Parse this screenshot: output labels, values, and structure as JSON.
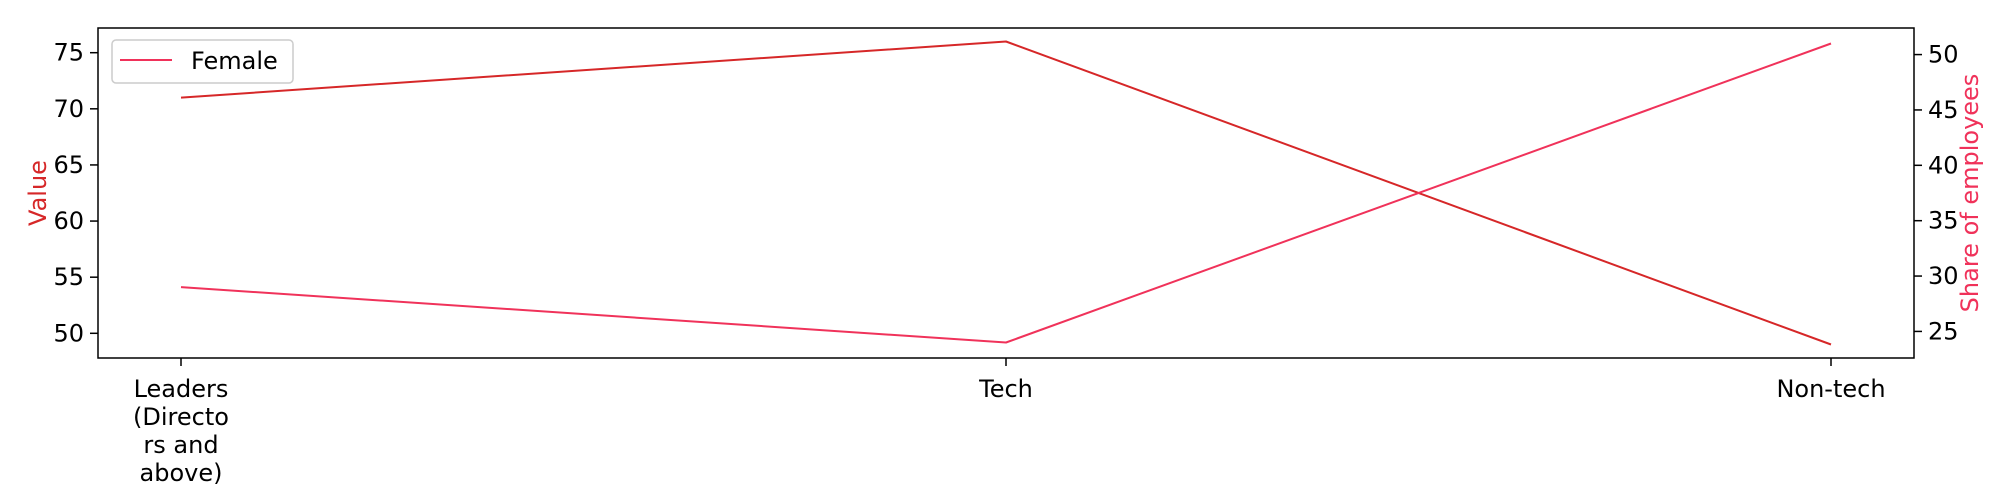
{
  "chart_data": {
    "type": "line",
    "categories": [
      "Leaders (Directors and above)",
      "Tech",
      "Non-tech"
    ],
    "category_tick_lines": [
      [
        "Leaders",
        "(Directo",
        "rs and",
        "above)"
      ],
      [
        "Tech"
      ],
      [
        "Non-tech"
      ]
    ],
    "left_axis": {
      "label": "Value",
      "color": "#d62728",
      "ylim": [
        47.8,
        77.2
      ],
      "ticks": [
        50,
        55,
        60,
        65,
        70,
        75
      ]
    },
    "right_axis": {
      "label": "Share of employees",
      "color": "#f0325a",
      "ylim": [
        22.6,
        52.4
      ],
      "ticks": [
        25,
        30,
        35,
        40,
        45,
        50
      ]
    },
    "series": [
      {
        "axis": "left",
        "color": "#d62728",
        "values": [
          71,
          76,
          49
        ]
      },
      {
        "name": "Female",
        "axis": "right",
        "color": "#f0325a",
        "values": [
          29,
          24,
          51
        ]
      }
    ],
    "legend": {
      "position": "top-left",
      "entries": [
        "Female"
      ]
    },
    "grid": false
  }
}
